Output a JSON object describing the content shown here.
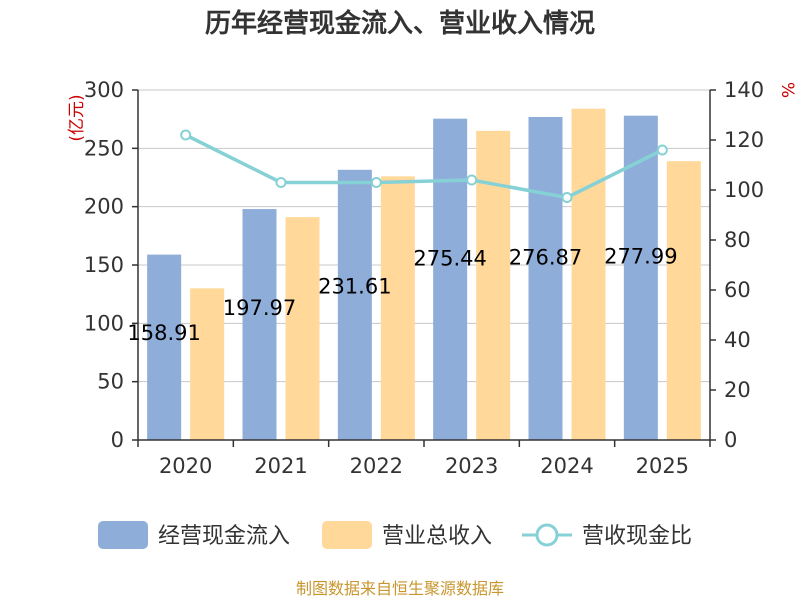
{
  "chart_data": {
    "type": "bar",
    "title": "历年经营现金流入、营业收入情况",
    "categories": [
      "2020",
      "2021",
      "2022",
      "2023",
      "2024",
      "2025"
    ],
    "series": [
      {
        "name": "经营现金流入",
        "kind": "bar",
        "axis": "left",
        "color": "#8eadd9",
        "values": [
          158.91,
          197.97,
          231.61,
          275.44,
          276.87,
          277.99
        ],
        "labels": [
          "158.91",
          "197.97",
          "231.61",
          "275.44",
          "276.87",
          "277.99"
        ]
      },
      {
        "name": "营业总收入",
        "kind": "bar",
        "axis": "left",
        "color": "#ffd89a",
        "values": [
          130,
          191,
          226,
          265,
          284,
          239
        ]
      },
      {
        "name": "营收现金比",
        "kind": "line",
        "axis": "right",
        "color": "#86d1d6",
        "values": [
          122,
          103,
          103,
          104,
          97,
          116
        ]
      }
    ],
    "y_left": {
      "unit": "(亿元)",
      "ylim": [
        0,
        300
      ],
      "ticks": [
        0,
        50,
        100,
        150,
        200,
        250,
        300
      ]
    },
    "y_right": {
      "unit": "%",
      "ylim": [
        0,
        140
      ],
      "ticks": [
        0,
        20,
        40,
        60,
        80,
        100,
        120,
        140
      ]
    },
    "grid": true,
    "legend": "bottom"
  },
  "source_text": "制图数据来自恒生聚源数据库"
}
